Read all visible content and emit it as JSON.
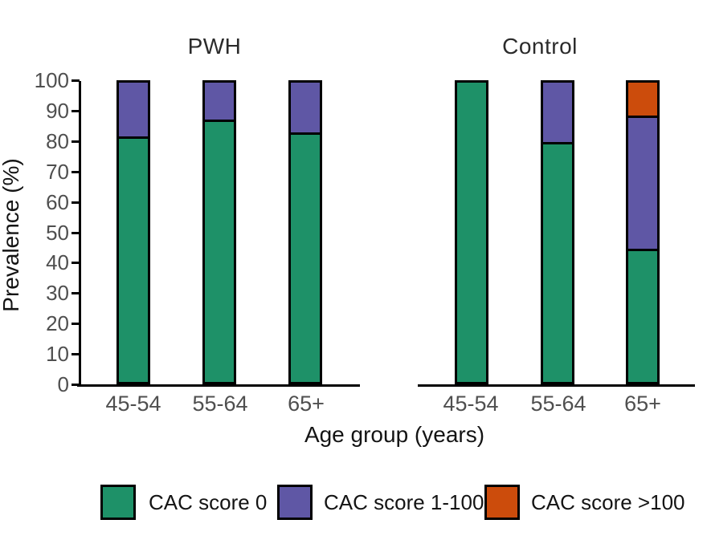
{
  "chart_data": {
    "type": "bar",
    "stacked": true,
    "unit": "%",
    "title_left": "PWH",
    "title_right": "Control",
    "xlabel": "Age group (years)",
    "ylabel": "Prevalence (%)",
    "ylim": [
      0,
      100
    ],
    "yticks": [
      0,
      10,
      20,
      30,
      40,
      50,
      60,
      70,
      80,
      90,
      100
    ],
    "grid": false,
    "legend_position": "bottom",
    "categories": [
      "45-54",
      "55-64",
      "65+"
    ],
    "panels": [
      {
        "title": "PWH",
        "series": [
          {
            "name": "CAC score 0",
            "values": [
              82,
              87.5,
              83.3
            ]
          },
          {
            "name": "CAC score 1-100",
            "values": [
              18,
              12.5,
              16.7
            ]
          },
          {
            "name": "CAC score >100",
            "values": [
              0,
              0,
              0
            ]
          }
        ]
      },
      {
        "title": "Control",
        "series": [
          {
            "name": "CAC score 0",
            "values": [
              100,
              80,
              44.4
            ]
          },
          {
            "name": "CAC score 1-100",
            "values": [
              0,
              20,
              44.5
            ]
          },
          {
            "name": "CAC score >100",
            "values": [
              0,
              0,
              11.1
            ]
          }
        ]
      }
    ],
    "legend": [
      {
        "label": "CAC score 0",
        "color": "#1E9168"
      },
      {
        "label": "CAC score 1-100",
        "color": "#5F57A5"
      },
      {
        "label": "CAC score >100",
        "color": "#CC4C0C"
      }
    ],
    "bar_edge_color": "#000000"
  }
}
